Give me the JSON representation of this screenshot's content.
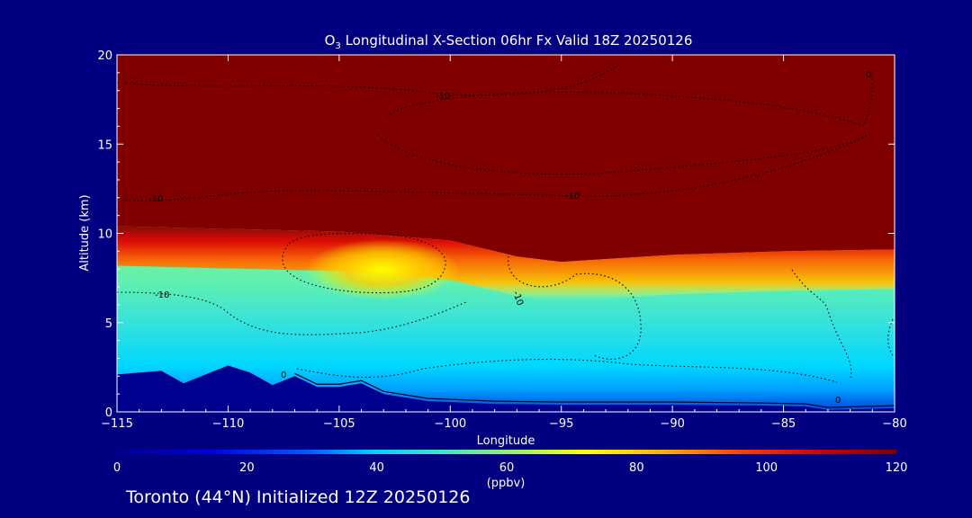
{
  "chart_data": {
    "type": "heatmap",
    "title_species_main": "O",
    "title_species_sub": "3",
    "title_rest": " Longitudinal X-Section 06hr  Fx Valid 18Z 20250126",
    "xlabel": "Longitude",
    "ylabel": "Altitude (km)",
    "xlim": [
      -115,
      -80
    ],
    "ylim": [
      0,
      20
    ],
    "x_ticks": [
      -115,
      -110,
      -105,
      -100,
      -95,
      -90,
      -85,
      -80
    ],
    "x_tick_labels": [
      "−115",
      "−110",
      "−105",
      "−100",
      "−95",
      "−90",
      "−85",
      "−80"
    ],
    "y_ticks": [
      0,
      5,
      10,
      15,
      20
    ],
    "y_tick_labels": [
      "0",
      "5",
      "10",
      "15",
      "20"
    ],
    "colorbar": {
      "min": 0,
      "max": 120,
      "ticks": [
        0,
        20,
        40,
        60,
        80,
        100,
        120
      ],
      "tick_labels": [
        "0",
        "20",
        "40",
        "60",
        "80",
        "100",
        "120"
      ],
      "units": "(ppbv)"
    },
    "contour_labels": [
      "-10",
      "-10",
      "-10",
      "-10",
      "-10",
      "0",
      "0",
      "0"
    ],
    "terrain_km": [
      [
        -115,
        2.1
      ],
      [
        -113,
        2.3
      ],
      [
        -112,
        1.6
      ],
      [
        -110,
        2.6
      ],
      [
        -109,
        2.2
      ],
      [
        -108,
        1.5
      ],
      [
        -107,
        2.0
      ],
      [
        -106,
        1.4
      ],
      [
        -105,
        1.4
      ],
      [
        -104,
        1.6
      ],
      [
        -103,
        1.0
      ],
      [
        -101,
        0.6
      ],
      [
        -98,
        0.45
      ],
      [
        -95,
        0.4
      ],
      [
        -90,
        0.4
      ],
      [
        -86,
        0.35
      ],
      [
        -84,
        0.3
      ],
      [
        -83,
        0.1
      ],
      [
        -80,
        0.2
      ]
    ],
    "tropopause_km": [
      [
        -115,
        10.4
      ],
      [
        -105,
        10.1
      ],
      [
        -102,
        9.8
      ],
      [
        -100,
        9.6
      ],
      [
        -97,
        8.7
      ],
      [
        -95,
        8.4
      ],
      [
        -90,
        8.8
      ],
      [
        -85,
        9.0
      ],
      [
        -80,
        9.1
      ]
    ],
    "footer": "Toronto (44°N) Initialized 12Z 20250126"
  }
}
